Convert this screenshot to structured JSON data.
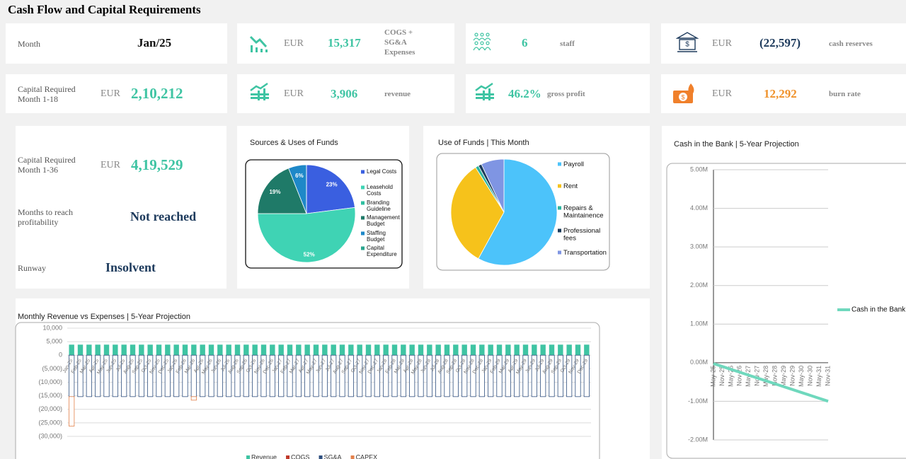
{
  "header": {
    "title": "Cash Flow and Capital Requirements"
  },
  "kpis": [
    {
      "label": "Month",
      "value": "Jan/25"
    },
    {
      "currency": "EUR",
      "value": "15,317",
      "desc": "COGS + SG&A Expenses"
    },
    {
      "value": "6",
      "desc": "staff"
    },
    {
      "currency": "EUR",
      "value": "(22,597)",
      "desc": "cash reserves"
    },
    {
      "label": "Capital Required Month 1-18",
      "currency": "EUR",
      "value": "2,10,212"
    },
    {
      "currency": "EUR",
      "value": "3,906",
      "desc": "revenue"
    },
    {
      "value": "46.2%",
      "desc": "gross profit"
    },
    {
      "currency": "EUR",
      "value": "12,292",
      "desc": "burn rate"
    },
    {
      "label": "Capital Required Month 1-36",
      "currency": "EUR",
      "value": "4,19,529"
    },
    {
      "label": "Months to reach profitability",
      "value": "Not reached"
    },
    {
      "label": "Runway",
      "value": "Insolvent"
    }
  ],
  "chart_data": [
    {
      "type": "pie",
      "title": "Sources & Uses of Funds",
      "categories": [
        "Legal Costs",
        "Leasehold Costs",
        "Branding Guideline",
        "Management Budget",
        "Staffing Budget",
        "Capital Expenditure"
      ],
      "values": [
        23,
        52,
        0,
        19,
        6,
        0
      ],
      "value_labels": [
        "23%",
        "52%",
        null,
        "19%",
        "6%",
        null
      ],
      "colors": [
        "#3a5fe0",
        "#3fd3b4",
        "#2fbfa0",
        "#1f7a68",
        "#1e88c8",
        "#2aa58e"
      ]
    },
    {
      "type": "pie",
      "title": "Use of Funds | This Month",
      "categories": [
        "Payroll",
        "Rent",
        "Repairs & Maintainence",
        "Professional fees",
        "Transportation"
      ],
      "values": [
        58,
        33,
        1,
        1,
        7
      ],
      "colors": [
        "#4cc3fa",
        "#f6c21b",
        "#2cb5a0",
        "#1c3b5a",
        "#7f95e3"
      ]
    },
    {
      "type": "bar",
      "title": "Monthly Revenue vs Expenses |  5-Year Projection",
      "categories": [
        "Jan-25",
        "Feb-25",
        "Mar-25",
        "Apr-25",
        "May-25",
        "Jun-25",
        "Jul-25",
        "Aug-25",
        "Sep-25",
        "Oct-25",
        "Nov-25",
        "Dec-25",
        "Jan-26",
        "Feb-26",
        "Mar-26",
        "Apr-26",
        "May-26",
        "Jun-26",
        "Jul-26",
        "Aug-26",
        "Sep-26",
        "Oct-26",
        "Nov-26",
        "Dec-26",
        "Jan-27",
        "Feb-27",
        "Mar-27",
        "Apr-27",
        "May-27",
        "Jun-27",
        "Jul-27",
        "Aug-27",
        "Sep-27",
        "Oct-27",
        "Nov-27",
        "Dec-27",
        "Jan-28",
        "Feb-28",
        "Mar-28",
        "Apr-28",
        "May-28",
        "Jun-28",
        "Jul-28",
        "Aug-28",
        "Sep-28",
        "Oct-28",
        "Nov-28",
        "Dec-28",
        "Jan-29",
        "Feb-29",
        "Mar-29",
        "Apr-29",
        "May-29",
        "Jun-29",
        "Jul-29",
        "Aug-29",
        "Sep-29",
        "Oct-29",
        "Nov-29",
        "Dec-29"
      ],
      "series": [
        {
          "name": "Revenue",
          "color": "#3fc4a3",
          "values": [
            3906,
            3906,
            3906,
            3906,
            3906,
            3906,
            3906,
            3906,
            3906,
            3906,
            3906,
            3906,
            3906,
            3906,
            3906,
            3906,
            3906,
            3906,
            3906,
            3906,
            3906,
            3906,
            3906,
            3906,
            3906,
            3906,
            3906,
            3906,
            3906,
            3906,
            3906,
            3906,
            3906,
            3906,
            3906,
            3906,
            3906,
            3906,
            3906,
            3906,
            3906,
            3906,
            3906,
            3906,
            3906,
            3906,
            3906,
            3906,
            3906,
            3906,
            3906,
            3906,
            3906,
            3906,
            3906,
            3906,
            3906,
            3906,
            3906,
            3906
          ]
        },
        {
          "name": "COGS",
          "color": "#c0392b",
          "values": [
            0,
            0,
            0,
            0,
            0,
            0,
            0,
            0,
            0,
            0,
            0,
            0,
            0,
            0,
            0,
            0,
            0,
            0,
            0,
            0,
            0,
            0,
            0,
            0,
            0,
            0,
            0,
            0,
            0,
            0,
            0,
            0,
            0,
            0,
            0,
            0,
            0,
            0,
            0,
            0,
            0,
            0,
            0,
            0,
            0,
            0,
            0,
            0,
            0,
            0,
            0,
            0,
            0,
            0,
            0,
            0,
            0,
            0,
            0,
            0
          ]
        },
        {
          "name": "SG&A",
          "color": "#2f4f7f",
          "values": [
            -15317,
            -15317,
            -15317,
            -15317,
            -15317,
            -15317,
            -15317,
            -15317,
            -15317,
            -15317,
            -15317,
            -15317,
            -15317,
            -15317,
            -15317,
            -15317,
            -15317,
            -15317,
            -15317,
            -15317,
            -15317,
            -15317,
            -15317,
            -15317,
            -15317,
            -15317,
            -15317,
            -15317,
            -15317,
            -15317,
            -15317,
            -15317,
            -15317,
            -15317,
            -15317,
            -15317,
            -15317,
            -15317,
            -15317,
            -15317,
            -15317,
            -15317,
            -15317,
            -15317,
            -15317,
            -15317,
            -15317,
            -15317,
            -15317,
            -15317,
            -15317,
            -15317,
            -15317,
            -15317,
            -15317,
            -15317,
            -15317,
            -15317,
            -15317,
            -15317
          ]
        },
        {
          "name": "CAPEX",
          "color": "#e3804a",
          "values": [
            -10900,
            0,
            0,
            0,
            0,
            0,
            0,
            0,
            0,
            0,
            0,
            0,
            0,
            0,
            -1300,
            0,
            0,
            0,
            0,
            0,
            0,
            0,
            0,
            0,
            0,
            0,
            0,
            0,
            0,
            0,
            0,
            0,
            0,
            0,
            0,
            0,
            0,
            0,
            0,
            0,
            0,
            0,
            0,
            0,
            0,
            0,
            0,
            0,
            0,
            0,
            0,
            0,
            0,
            0,
            0,
            0,
            0,
            0,
            0,
            0
          ]
        }
      ],
      "ylim": [
        -30000,
        10000
      ],
      "yticks": [
        {
          "value": 10000,
          "label": "10,000"
        },
        {
          "value": 5000,
          "label": "5,000"
        },
        0,
        {
          "value": -5000,
          "label": "(5,000)"
        },
        {
          "value": -10000,
          "label": "(10,000)"
        },
        {
          "value": -15000,
          "label": "(15,000)"
        },
        {
          "value": -20000,
          "label": "(20,000)"
        },
        {
          "value": -25000,
          "label": "(25,000)"
        },
        {
          "value": -30000,
          "label": "(30,000)"
        }
      ],
      "grid": true
    },
    {
      "type": "line",
      "title": "Cash in the Bank | 5-Year Projection",
      "categories": [
        "May-25",
        "Nov-25",
        "May-26",
        "Nov-26",
        "May-27",
        "Nov-27",
        "May-28",
        "Nov-28",
        "May-29",
        "Nov-29",
        "May-30",
        "Nov-30",
        "May-31",
        "Nov-31"
      ],
      "series": [
        {
          "name": "Cash in the Bank",
          "color": "#6fd8bd",
          "values": [
            -22597,
            -98000,
            -173000,
            -248000,
            -323000,
            -398000,
            -473000,
            -548000,
            -623000,
            -698000,
            -773000,
            -848000,
            -923000,
            -998000
          ]
        }
      ],
      "ylim": [
        -2000000,
        5000000
      ],
      "yticks": [
        {
          "value": 5000000,
          "label": "5.00M"
        },
        {
          "value": 4000000,
          "label": "4.00M"
        },
        {
          "value": 3000000,
          "label": "3.00M"
        },
        {
          "value": 2000000,
          "label": "2.00M"
        },
        {
          "value": 1000000,
          "label": "1.00M"
        },
        {
          "value": 0,
          "label": "0.00M"
        },
        {
          "value": -1000000,
          "label": "-1.00M"
        },
        {
          "value": -2000000,
          "label": "-2.00M"
        }
      ],
      "grid": true,
      "legend": "right"
    }
  ]
}
